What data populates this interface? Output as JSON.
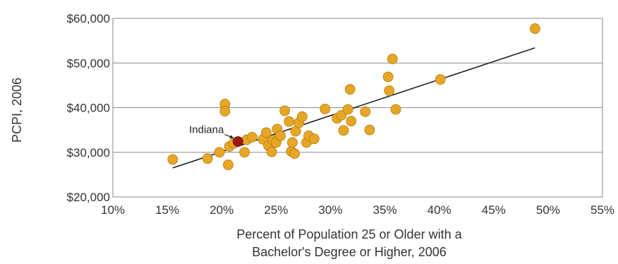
{
  "chart_data": {
    "type": "scatter",
    "title": "",
    "xlabel": "Percent of Population 25 or Older with a Bachelor's Degree or Higher, 2006",
    "xlabel_lines": [
      "Percent of Population 25 or Older with a",
      "Bachelor's Degree or Higher, 2006"
    ],
    "ylabel": "PCPI, 2006",
    "xlim": [
      10,
      55
    ],
    "ylim": [
      20000,
      60000
    ],
    "xticks": [
      10,
      15,
      20,
      25,
      30,
      35,
      40,
      45,
      50,
      55
    ],
    "xtick_labels": [
      "10%",
      "15%",
      "20%",
      "25%",
      "30%",
      "35%",
      "40%",
      "45%",
      "50%",
      "55%"
    ],
    "yticks": [
      20000,
      30000,
      40000,
      50000,
      60000
    ],
    "ytick_labels": [
      "$20,000",
      "$30,000",
      "$40,000",
      "$50,000",
      "$60,000"
    ],
    "grid": "horizontal",
    "colors": {
      "points": "#e8a626",
      "highlight": "#a01616",
      "trendline": "#222222"
    },
    "trendline": {
      "x": [
        15.5,
        48.8
      ],
      "y": [
        26500,
        53400
      ]
    },
    "annotation": {
      "text": "Indiana",
      "x": 21.5,
      "y": 32400
    },
    "points": [
      {
        "x": 15.5,
        "y": 28400
      },
      {
        "x": 18.7,
        "y": 28600
      },
      {
        "x": 19.8,
        "y": 30000
      },
      {
        "x": 20.3,
        "y": 40800
      },
      {
        "x": 20.3,
        "y": 39200
      },
      {
        "x": 20.6,
        "y": 27200
      },
      {
        "x": 20.7,
        "y": 31300
      },
      {
        "x": 21.1,
        "y": 32000
      },
      {
        "x": 21.5,
        "y": 32400,
        "label": "Indiana"
      },
      {
        "x": 22.1,
        "y": 30000
      },
      {
        "x": 22.3,
        "y": 32800
      },
      {
        "x": 22.8,
        "y": 33400
      },
      {
        "x": 23.8,
        "y": 32900
      },
      {
        "x": 24.1,
        "y": 34400
      },
      {
        "x": 24.3,
        "y": 31500
      },
      {
        "x": 24.6,
        "y": 30100
      },
      {
        "x": 24.7,
        "y": 32700
      },
      {
        "x": 25.0,
        "y": 32200
      },
      {
        "x": 25.1,
        "y": 35200
      },
      {
        "x": 25.4,
        "y": 33700
      },
      {
        "x": 25.8,
        "y": 39300
      },
      {
        "x": 26.2,
        "y": 36900
      },
      {
        "x": 26.4,
        "y": 30200
      },
      {
        "x": 26.5,
        "y": 32200
      },
      {
        "x": 26.7,
        "y": 29700
      },
      {
        "x": 26.8,
        "y": 34700
      },
      {
        "x": 27.1,
        "y": 36600
      },
      {
        "x": 27.4,
        "y": 38000
      },
      {
        "x": 27.8,
        "y": 32200
      },
      {
        "x": 28.0,
        "y": 33700
      },
      {
        "x": 28.5,
        "y": 33000
      },
      {
        "x": 29.5,
        "y": 39700
      },
      {
        "x": 30.6,
        "y": 37600
      },
      {
        "x": 31.0,
        "y": 38300
      },
      {
        "x": 31.2,
        "y": 34900
      },
      {
        "x": 31.6,
        "y": 39600
      },
      {
        "x": 31.8,
        "y": 44100
      },
      {
        "x": 31.9,
        "y": 37000
      },
      {
        "x": 33.2,
        "y": 39100
      },
      {
        "x": 33.6,
        "y": 35000
      },
      {
        "x": 35.3,
        "y": 46900
      },
      {
        "x": 35.4,
        "y": 43800
      },
      {
        "x": 35.7,
        "y": 50900
      },
      {
        "x": 36.0,
        "y": 39600
      },
      {
        "x": 40.1,
        "y": 46300
      },
      {
        "x": 48.8,
        "y": 57700
      }
    ]
  }
}
